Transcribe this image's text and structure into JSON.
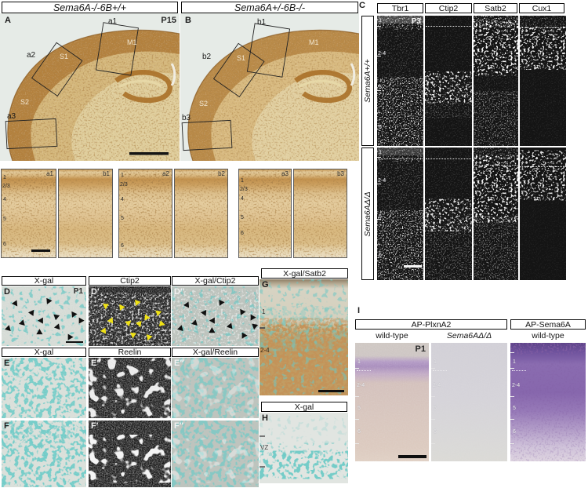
{
  "colors": {
    "xgal_teal": "#2d9a96",
    "dab_brown": "#8a4a1c",
    "ap_purple": "#7a5aa8",
    "arrow_yellow": "#f0e215",
    "ihc_brown": "#b3813e"
  },
  "title_a": "Sema6A-/-6B+/+",
  "title_b": "Sema6A+/-6B-/-",
  "panel_a": {
    "label": "A",
    "age": "P15",
    "region_m1": "M1",
    "region_s1": "S1",
    "region_s2": "S2",
    "inset1": "a1",
    "inset2": "a2",
    "inset3": "a3"
  },
  "panel_b": {
    "label": "B",
    "region_m1": "M1",
    "region_s1": "S1",
    "region_s2": "S2",
    "inset1": "b1",
    "inset2": "b2",
    "inset3": "b3"
  },
  "zoom_row": {
    "tile_labels": [
      "a1",
      "b1",
      "a2",
      "b2",
      "a3",
      "b3"
    ],
    "layers": [
      "1",
      "2/3",
      "4",
      "5",
      "6"
    ]
  },
  "panel_c": {
    "label": "C",
    "age": "P3",
    "markers": [
      "Tbr1",
      "Ctip2",
      "Satb2",
      "Cux1"
    ],
    "genotype_top": "Sema6A+/+",
    "genotype_bottom": "Sema6AΔ/Δ",
    "layers": [
      "1",
      "2-4",
      "5",
      "6"
    ]
  },
  "panel_d": {
    "headers": [
      "X-gal",
      "Ctip2",
      "X-gal/Ctip2"
    ],
    "labels": [
      "D",
      "D′",
      "D″"
    ],
    "age": "P1",
    "arrows_black": [
      [
        14,
        24,
        55
      ],
      [
        33,
        40,
        65
      ],
      [
        53,
        20,
        115
      ],
      [
        62,
        46,
        100
      ],
      [
        82,
        42,
        115
      ],
      [
        91,
        52,
        120
      ],
      [
        22,
        56,
        45
      ],
      [
        44,
        52,
        60
      ],
      [
        6,
        66,
        45
      ],
      [
        43,
        72,
        30
      ],
      [
        64,
        63,
        50
      ],
      [
        78,
        80,
        120
      ]
    ],
    "arrows_yellow": [
      [
        18,
        28,
        95
      ],
      [
        37,
        30,
        115
      ],
      [
        56,
        22,
        110
      ],
      [
        25,
        52,
        55
      ],
      [
        46,
        56,
        80
      ],
      [
        59,
        58,
        70
      ],
      [
        68,
        48,
        125
      ],
      [
        82,
        40,
        100
      ],
      [
        86,
        58,
        135
      ],
      [
        16,
        70,
        55
      ],
      [
        51,
        76,
        95
      ],
      [
        70,
        80,
        110
      ]
    ],
    "arrows_merge": [
      [
        15,
        26,
        55
      ],
      [
        35,
        40,
        65
      ],
      [
        54,
        22,
        115
      ],
      [
        78,
        38,
        115
      ],
      [
        90,
        48,
        120
      ],
      [
        24,
        56,
        45
      ],
      [
        45,
        52,
        60
      ],
      [
        8,
        66,
        45
      ],
      [
        44,
        70,
        30
      ],
      [
        65,
        62,
        50
      ],
      [
        80,
        78,
        120
      ],
      [
        93,
        62,
        100
      ]
    ]
  },
  "panel_e": {
    "headers": [
      "X-gal",
      "Reelin",
      "X-gal/Reelin"
    ],
    "labels": [
      "E",
      "E′",
      "E″"
    ]
  },
  "panel_f": {
    "labels": [
      "F",
      "F′",
      "F″"
    ]
  },
  "panel_g": {
    "header": "X-gal/Satb2",
    "label": "G",
    "layer1": "1",
    "layer24": "2-4"
  },
  "panel_h": {
    "header": "X-gal",
    "label": "H",
    "zone": "VZ"
  },
  "panel_i": {
    "label": "I",
    "age": "P1",
    "group1": "AP-PlxnA2",
    "group2": "AP-Sema6A",
    "col1": "wild-type",
    "col2": "Sema6AΔ/Δ",
    "col3": "wild-type",
    "layers": [
      "1",
      "2-4",
      "5",
      "6"
    ]
  }
}
